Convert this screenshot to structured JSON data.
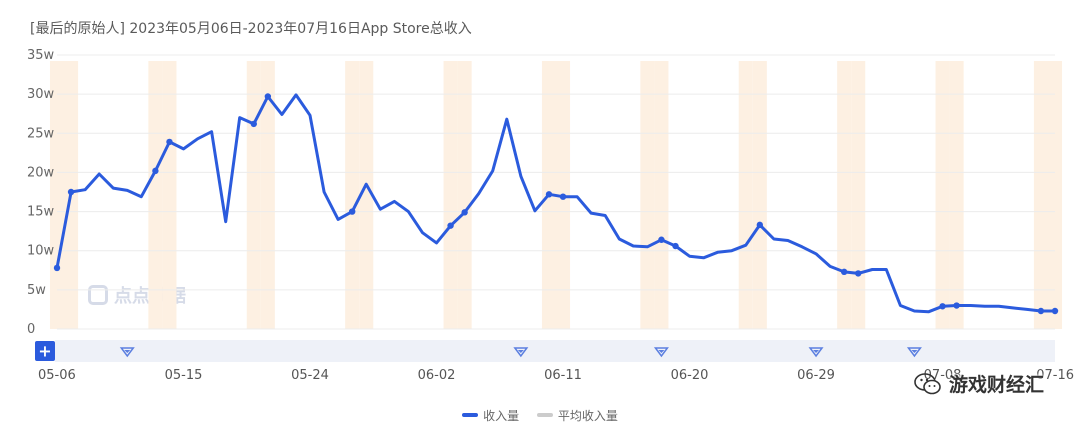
{
  "title": "[最后的原始人] 2023年05月06日-2023年07月16日App Store总收入",
  "watermark_text": "游戏财经汇",
  "logo_text": "点点数据",
  "legend": [
    {
      "label": "收入量",
      "color": "#2b5bdd"
    },
    {
      "label": "平均收入量",
      "color": "#cccccc"
    }
  ],
  "colors": {
    "line": "#2b5bdd",
    "weekend": "#fdf0e2",
    "grid": "#ececec",
    "navigator": "#eef1f8",
    "marker": "#5b7fe0"
  },
  "icons": {
    "add": "plus-icon",
    "event": "diamond-marker-icon",
    "wechat": "wechat-icon"
  },
  "navigator": {
    "add_label": "+"
  },
  "chart_data": {
    "type": "line",
    "title": "[最后的原始人] 2023年05月06日-2023年07月16日App Store总收入",
    "x": [
      "05-06",
      "05-07",
      "05-08",
      "05-09",
      "05-10",
      "05-11",
      "05-12",
      "05-13",
      "05-14",
      "05-15",
      "05-16",
      "05-17",
      "05-18",
      "05-19",
      "05-20",
      "05-21",
      "05-22",
      "05-23",
      "05-24",
      "05-25",
      "05-26",
      "05-27",
      "05-28",
      "05-29",
      "05-30",
      "05-31",
      "06-01",
      "06-02",
      "06-03",
      "06-04",
      "06-05",
      "06-06",
      "06-07",
      "06-08",
      "06-09",
      "06-10",
      "06-11",
      "06-12",
      "06-13",
      "06-14",
      "06-15",
      "06-16",
      "06-17",
      "06-18",
      "06-19",
      "06-20",
      "06-21",
      "06-22",
      "06-23",
      "06-24",
      "06-25",
      "06-26",
      "06-27",
      "06-28",
      "06-29",
      "06-30",
      "07-01",
      "07-02",
      "07-03",
      "07-04",
      "07-05",
      "07-06",
      "07-07",
      "07-08",
      "07-09",
      "07-10",
      "07-11",
      "07-12",
      "07-13",
      "07-14",
      "07-15",
      "07-16"
    ],
    "series": [
      {
        "name": "收入量",
        "values": [
          7.8,
          17.5,
          17.8,
          19.8,
          18.0,
          17.7,
          16.9,
          20.2,
          23.9,
          23.0,
          24.3,
          25.2,
          13.7,
          27.0,
          26.2,
          29.7,
          27.4,
          29.9,
          27.3,
          17.5,
          14.0,
          15.0,
          18.5,
          15.3,
          16.3,
          15.0,
          12.3,
          11.0,
          13.2,
          14.9,
          17.3,
          20.2,
          26.8,
          19.5,
          15.1,
          17.2,
          16.9,
          16.9,
          14.8,
          14.5,
          11.5,
          10.6,
          10.5,
          11.4,
          10.6,
          9.3,
          9.1,
          9.8,
          10.0,
          10.7,
          13.3,
          11.5,
          11.3,
          10.5,
          9.6,
          8.0,
          7.3,
          7.1,
          7.6,
          7.6,
          3.0,
          2.3,
          2.2,
          2.9,
          3.0,
          3.0,
          2.9,
          2.9,
          2.7,
          2.5,
          2.3,
          2.3
        ]
      }
    ],
    "markers": [
      "05-06",
      "05-07",
      "05-13",
      "05-14",
      "05-20",
      "05-21",
      "05-27",
      "06-03",
      "06-04",
      "06-10",
      "06-11",
      "06-18",
      "06-19",
      "06-25",
      "07-01",
      "07-02",
      "07-08",
      "07-09",
      "07-15",
      "07-16"
    ],
    "weekends": [
      "05-06",
      "05-07",
      "05-13",
      "05-14",
      "05-20",
      "05-21",
      "05-27",
      "05-28",
      "06-03",
      "06-04",
      "06-10",
      "06-11",
      "06-17",
      "06-18",
      "06-24",
      "06-25",
      "07-01",
      "07-02",
      "07-08",
      "07-09",
      "07-15",
      "07-16"
    ],
    "event_markers": [
      "05-11",
      "06-08",
      "06-18",
      "06-29",
      "07-06"
    ],
    "xticks": [
      "05-06",
      "05-15",
      "05-24",
      "06-02",
      "06-11",
      "06-20",
      "06-29",
      "07-08",
      "07-16"
    ],
    "yticks": [
      0,
      5,
      10,
      15,
      20,
      25,
      30,
      35
    ],
    "ytick_labels": [
      "0",
      "5w",
      "10w",
      "15w",
      "20w",
      "25w",
      "30w",
      "35w"
    ],
    "ylim": [
      0,
      35
    ],
    "grid": true,
    "legend_position": "bottom-center"
  }
}
